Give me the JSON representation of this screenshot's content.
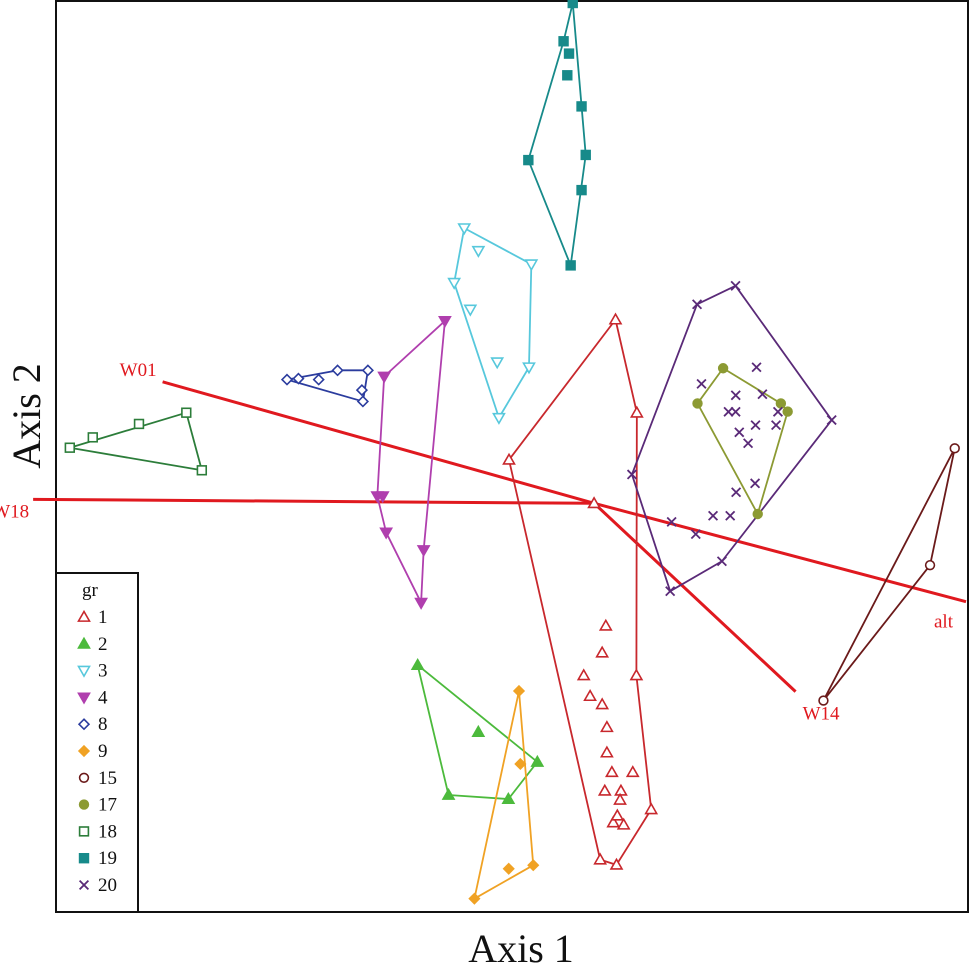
{
  "chart_data": {
    "type": "scatter",
    "title": "",
    "xlabel": "Axis 1",
    "ylabel": "Axis 2",
    "xlim": [
      0,
      1
    ],
    "ylim": [
      0,
      1
    ],
    "grid": false,
    "legend_placement": "bottom-left",
    "legend_title": "gr",
    "origin": [
      0.5905,
      0.4484
    ],
    "vectors": [
      {
        "name": "W01",
        "end": [
          0.1152,
          0.5823
        ],
        "color": "#e0191f"
      },
      {
        "name": "W18",
        "end": [
          -0.0274,
          0.4527
        ],
        "color": "#e0191f"
      },
      {
        "name": "W14",
        "end": [
          0.8123,
          0.2408
        ],
        "color": "#e0191f"
      },
      {
        "name": "alt",
        "end": [
          1.0,
          0.3399
        ],
        "color": "#e0191f"
      }
    ],
    "series": [
      {
        "name": "1",
        "marker": "triangle-up-open",
        "color": "#c8282d",
        "points": [
          [
            0.614,
            0.6509
          ],
          [
            0.6375,
            0.5482
          ],
          [
            0.4967,
            0.4963
          ],
          [
            0.5904,
            0.4484
          ],
          [
            0.637,
            0.2586
          ],
          [
            0.6533,
            0.1109
          ],
          [
            0.6151,
            0.0498
          ],
          [
            0.5971,
            0.0555
          ],
          [
            0.6022,
            0.1314
          ],
          [
            0.61,
            0.1519
          ],
          [
            0.62,
            0.1314
          ],
          [
            0.633,
            0.1519
          ],
          [
            0.5993,
            0.2266
          ],
          [
            0.579,
            0.2586
          ],
          [
            0.5993,
            0.2837
          ],
          [
            0.6033,
            0.3133
          ],
          [
            0.586,
            0.2358
          ],
          [
            0.6045,
            0.2015
          ],
          [
            0.6045,
            0.1735
          ],
          [
            0.6115,
            0.0964
          ],
          [
            0.616,
            0.104
          ],
          [
            0.623,
            0.094
          ],
          [
            0.619,
            0.1214
          ]
        ],
        "hull": [
          [
            0.614,
            0.6509
          ],
          [
            0.4967,
            0.4963
          ],
          [
            0.5971,
            0.0555
          ],
          [
            0.6151,
            0.0498
          ],
          [
            0.6533,
            0.1109
          ],
          [
            0.637,
            0.2586
          ],
          [
            0.6375,
            0.5482
          ]
        ]
      },
      {
        "name": "2",
        "marker": "triangle-up-filled",
        "color": "#4cba3c",
        "points": [
          [
            0.3961,
            0.27
          ],
          [
            0.4629,
            0.1962
          ],
          [
            0.5279,
            0.1632
          ],
          [
            0.4301,
            0.1268
          ],
          [
            0.496,
            0.1223
          ]
        ],
        "hull": [
          [
            0.3961,
            0.27
          ],
          [
            0.5279,
            0.1632
          ],
          [
            0.496,
            0.1223
          ],
          [
            0.4301,
            0.1268
          ]
        ]
      },
      {
        "name": "3",
        "marker": "triangle-down-open",
        "color": "#57c8dc",
        "points": [
          [
            0.4474,
            0.7518
          ],
          [
            0.5213,
            0.712
          ],
          [
            0.4363,
            0.6916
          ],
          [
            0.463,
            0.7268
          ],
          [
            0.4541,
            0.6621
          ],
          [
            0.4837,
            0.604
          ],
          [
            0.5187,
            0.5984
          ],
          [
            0.4856,
            0.5427
          ]
        ],
        "hull": [
          [
            0.4474,
            0.7518
          ],
          [
            0.5213,
            0.712
          ],
          [
            0.5187,
            0.5984
          ],
          [
            0.4856,
            0.5427
          ],
          [
            0.4363,
            0.6916
          ]
        ]
      },
      {
        "name": "4",
        "marker": "triangle-down-filled",
        "color": "#b03fae",
        "points": [
          [
            0.4261,
            0.6495
          ],
          [
            0.3592,
            0.5882
          ],
          [
            0.3517,
            0.4563
          ],
          [
            0.3576,
            0.4563
          ],
          [
            0.3614,
            0.4163
          ],
          [
            0.4027,
            0.3969
          ],
          [
            0.3999,
            0.3388
          ]
        ],
        "hull": [
          [
            0.4261,
            0.6495
          ],
          [
            0.4027,
            0.3969
          ],
          [
            0.3999,
            0.3388
          ],
          [
            0.3614,
            0.4163
          ],
          [
            0.3517,
            0.4563
          ],
          [
            0.3592,
            0.5882
          ]
        ]
      },
      {
        "name": "8",
        "marker": "diamond-open",
        "color": "#2b3c9e",
        "points": [
          [
            0.2522,
            0.5848
          ],
          [
            0.2648,
            0.5859
          ],
          [
            0.2871,
            0.5848
          ],
          [
            0.3079,
            0.595
          ],
          [
            0.3413,
            0.595
          ],
          [
            0.3347,
            0.5732
          ],
          [
            0.3358,
            0.5607
          ]
        ],
        "hull": [
          [
            0.2522,
            0.5848
          ],
          [
            0.3079,
            0.595
          ],
          [
            0.3413,
            0.595
          ],
          [
            0.3358,
            0.5607
          ]
        ]
      },
      {
        "name": "9",
        "marker": "diamond-filled",
        "color": "#f0a224",
        "points": [
          [
            0.5077,
            0.2415
          ],
          [
            0.5092,
            0.161
          ],
          [
            0.5234,
            0.0494
          ],
          [
            0.4964,
            0.0455
          ],
          [
            0.4586,
            0.0125
          ]
        ],
        "hull": [
          [
            0.5077,
            0.2415
          ],
          [
            0.5234,
            0.0494
          ],
          [
            0.4586,
            0.0125
          ]
        ]
      },
      {
        "name": "15",
        "marker": "circle-open",
        "color": "#6b1a1a",
        "points": [
          [
            0.9876,
            0.509
          ],
          [
            0.9604,
            0.3802
          ],
          [
            0.843,
            0.2309
          ]
        ],
        "hull": [
          [
            0.9876,
            0.509
          ],
          [
            0.9604,
            0.3802
          ],
          [
            0.843,
            0.2309
          ]
        ]
      },
      {
        "name": "17",
        "marker": "circle-filled",
        "color": "#8c9a33",
        "points": [
          [
            0.7325,
            0.5973
          ],
          [
            0.7043,
            0.5585
          ],
          [
            0.7961,
            0.5585
          ],
          [
            0.8036,
            0.5495
          ],
          [
            0.7706,
            0.4366
          ]
        ],
        "hull": [
          [
            0.7325,
            0.5973
          ],
          [
            0.7961,
            0.5585
          ],
          [
            0.8036,
            0.5495
          ],
          [
            0.7706,
            0.4366
          ],
          [
            0.7043,
            0.5585
          ]
        ]
      },
      {
        "name": "18",
        "marker": "square-open",
        "color": "#2c7d3a",
        "points": [
          [
            0.013,
            0.5097
          ],
          [
            0.0383,
            0.5211
          ],
          [
            0.0892,
            0.5359
          ],
          [
            0.1413,
            0.5483
          ],
          [
            0.1584,
            0.4848
          ]
        ],
        "hull": [
          [
            0.013,
            0.5097
          ],
          [
            0.1413,
            0.5483
          ],
          [
            0.1584,
            0.4848
          ]
        ]
      },
      {
        "name": "19",
        "marker": "square-filled",
        "color": "#178a8a",
        "points": [
          [
            0.5669,
            1.0
          ],
          [
            0.5568,
            0.9578
          ],
          [
            0.5628,
            0.9442
          ],
          [
            0.5609,
            0.9203
          ],
          [
            0.5766,
            0.886
          ],
          [
            0.5812,
            0.8325
          ],
          [
            0.518,
            0.8268
          ],
          [
            0.5766,
            0.7937
          ],
          [
            0.5646,
            0.7107
          ]
        ],
        "hull": [
          [
            0.5669,
            1.0
          ],
          [
            0.5812,
            0.8325
          ],
          [
            0.5646,
            0.7107
          ],
          [
            0.518,
            0.8268
          ],
          [
            0.5568,
            0.9578
          ]
        ]
      },
      {
        "name": "20",
        "marker": "cross",
        "color": "#5a2a78",
        "points": [
          [
            0.7462,
            0.6882
          ],
          [
            0.7038,
            0.6678
          ],
          [
            0.8521,
            0.5402
          ],
          [
            0.6321,
            0.4802
          ],
          [
            0.6758,
            0.4279
          ],
          [
            0.7312,
            0.3845
          ],
          [
            0.6742,
            0.3515
          ],
          [
            0.7693,
            0.5984
          ],
          [
            0.7087,
            0.5801
          ],
          [
            0.7464,
            0.5675
          ],
          [
            0.7758,
            0.5687
          ],
          [
            0.7384,
            0.5493
          ],
          [
            0.7463,
            0.5493
          ],
          [
            0.7682,
            0.5346
          ],
          [
            0.7929,
            0.5493
          ],
          [
            0.7908,
            0.5346
          ],
          [
            0.7503,
            0.5267
          ],
          [
            0.76,
            0.5146
          ],
          [
            0.7677,
            0.4704
          ],
          [
            0.7468,
            0.4606
          ],
          [
            0.7403,
            0.4347
          ],
          [
            0.7214,
            0.4347
          ],
          [
            0.7024,
            0.4144
          ]
        ],
        "hull": [
          [
            0.7462,
            0.6882
          ],
          [
            0.8521,
            0.5402
          ],
          [
            0.7312,
            0.3845
          ],
          [
            0.6742,
            0.3515
          ],
          [
            0.6321,
            0.4802
          ],
          [
            0.7038,
            0.6678
          ]
        ]
      }
    ]
  }
}
